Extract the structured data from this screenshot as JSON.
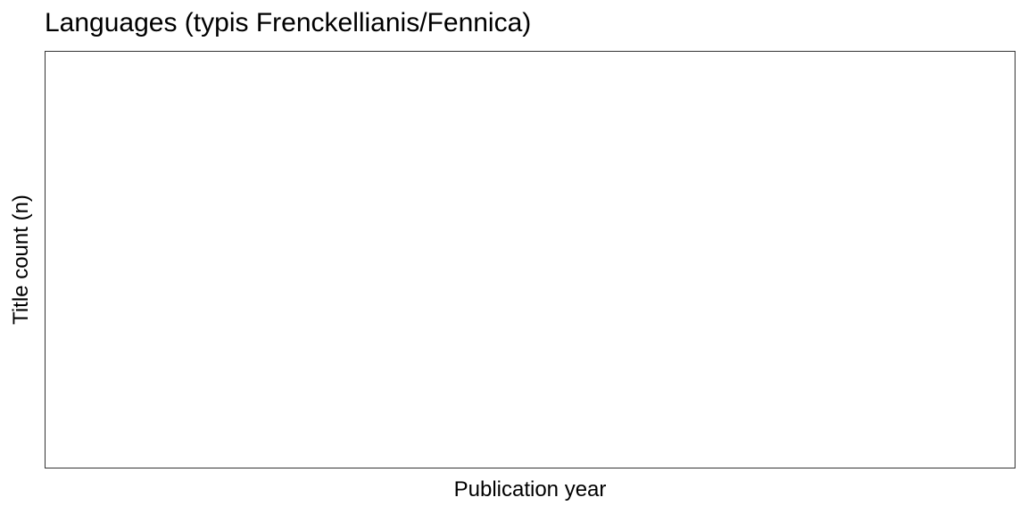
{
  "chart_data": {
    "type": "bar",
    "title": "Languages (typis Frenckellianis/Fennica)",
    "xlabel": "Publication year",
    "ylabel": "Title count (n)",
    "categories": [],
    "series": [],
    "grid": false,
    "legend": "none"
  }
}
